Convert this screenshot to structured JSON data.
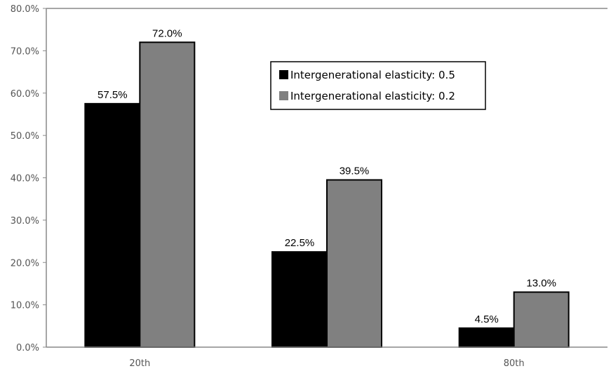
{
  "chart_data": {
    "type": "bar",
    "title": "",
    "xlabel": "",
    "ylabel": "",
    "categories": [
      "20th",
      "",
      "80th"
    ],
    "ylim": [
      0,
      80
    ],
    "yticks": [
      "0.0%",
      "10.0%",
      "20.0%",
      "30.0%",
      "40.0%",
      "50.0%",
      "60.0%",
      "70.0%",
      "80.0%"
    ],
    "grid": false,
    "legend_position": "top-right",
    "series": [
      {
        "name": "Intergenerational elasticity: 0.5",
        "color": "#000000",
        "values": [
          57.5,
          22.5,
          4.5
        ],
        "labels": [
          "57.5%",
          "22.5%",
          "4.5%"
        ]
      },
      {
        "name": "Intergenerational elasticity: 0.2",
        "color": "#808080",
        "values": [
          72.0,
          39.5,
          13.0
        ],
        "labels": [
          "72.0%",
          "39.5%",
          "13.0%"
        ]
      }
    ]
  }
}
